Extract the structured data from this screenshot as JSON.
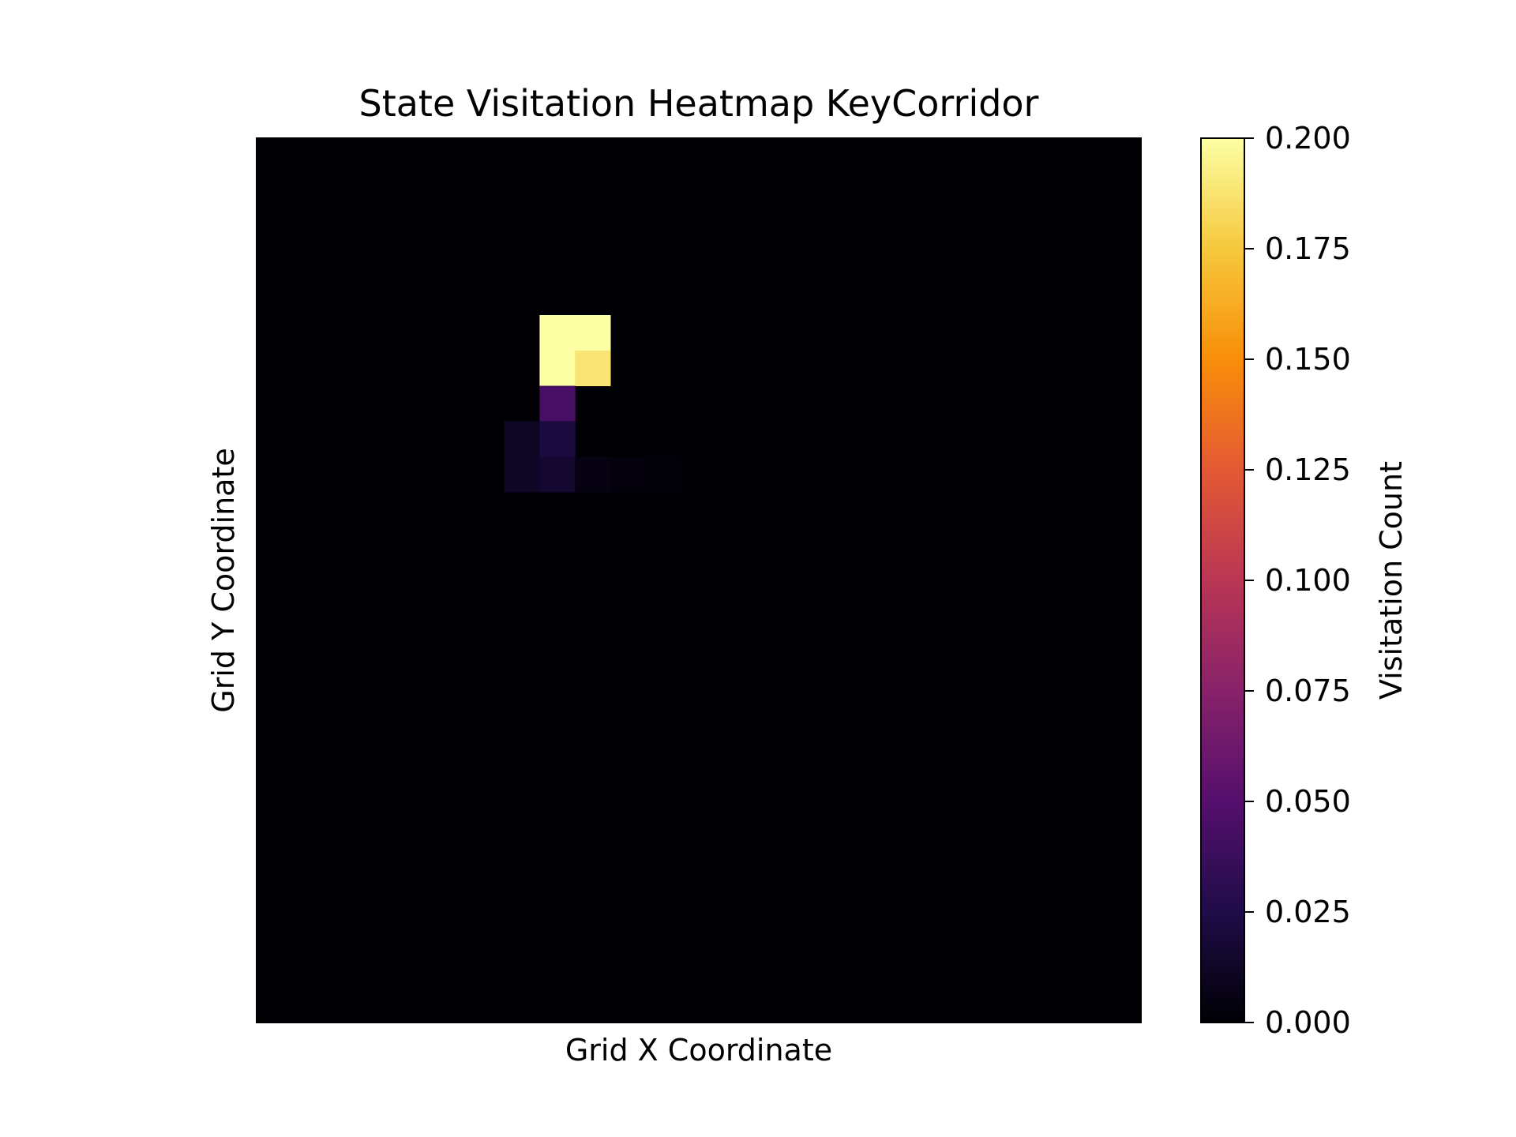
{
  "chart_data": {
    "type": "heatmap",
    "title": "State Visitation Heatmap KeyCorridor",
    "xlabel": "Grid X Coordinate",
    "ylabel": "Grid Y Coordinate",
    "grid_size": [
      25,
      25
    ],
    "x_ticks_shown": false,
    "y_ticks_shown": false,
    "colormap": "inferno",
    "colorbar": {
      "label": "Visitation Count",
      "range": [
        0,
        0.2
      ],
      "ticks": [
        "0.000",
        "0.025",
        "0.050",
        "0.075",
        "0.100",
        "0.125",
        "0.150",
        "0.175",
        "0.200"
      ]
    },
    "cells": [
      {
        "x": 8,
        "y": 5,
        "value": 0.2
      },
      {
        "x": 9,
        "y": 5,
        "value": 0.2
      },
      {
        "x": 8,
        "y": 6,
        "value": 0.2
      },
      {
        "x": 9,
        "y": 6,
        "value": 0.188
      },
      {
        "x": 8,
        "y": 7,
        "value": 0.044
      },
      {
        "x": 7,
        "y": 8,
        "value": 0.012
      },
      {
        "x": 8,
        "y": 8,
        "value": 0.022
      },
      {
        "x": 7,
        "y": 9,
        "value": 0.012
      },
      {
        "x": 8,
        "y": 9,
        "value": 0.016
      },
      {
        "x": 9,
        "y": 9,
        "value": 0.005
      },
      {
        "x": 10,
        "y": 9,
        "value": 0.003
      },
      {
        "x": 11,
        "y": 9,
        "value": 0.002
      }
    ]
  }
}
